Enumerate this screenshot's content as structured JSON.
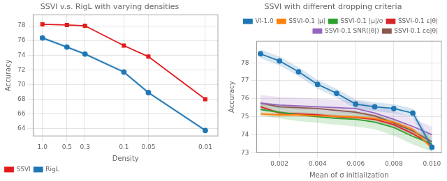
{
  "chart_data": [
    {
      "type": "line",
      "title": "SSVI v.s. RigL with varying densities",
      "xlabel": "Density",
      "ylabel": "Accuracy",
      "log": "x",
      "x": [
        1.0,
        0.5,
        0.3,
        0.1,
        0.05,
        0.01
      ],
      "xlim": [
        1.3,
        0.007
      ],
      "xticks": [
        {
          "value": 1.0,
          "label": "1.0"
        },
        0.5,
        0.3,
        0.1,
        0.05,
        0.01
      ],
      "ylim": [
        63.0,
        79.5
      ],
      "yticks": [
        64,
        66,
        68,
        70,
        72,
        74,
        76,
        78
      ],
      "grid": true,
      "legend": "lower left",
      "series": [
        {
          "name": "SSVI",
          "color": "#e31a1c",
          "marker": "square",
          "values": [
            78.2,
            78.1,
            78.0,
            75.3,
            73.8,
            68.0
          ],
          "err": [
            0.08,
            0.08,
            0.08,
            0.08,
            0.08,
            0.08
          ]
        },
        {
          "name": "RigL",
          "color": "#1f77b4",
          "marker": "circle",
          "values": [
            76.35,
            75.1,
            74.15,
            71.7,
            68.9,
            63.75
          ],
          "err": [
            0.2,
            0.2,
            0.2,
            0.2,
            0.2,
            0.2
          ]
        }
      ]
    },
    {
      "type": "line",
      "title": "SSVI with different dropping criteria",
      "xlabel": "Mean of σ initialization",
      "ylabel": "Accuracy",
      "x": [
        0.001,
        0.002,
        0.003,
        0.004,
        0.005,
        0.006,
        0.007,
        0.008,
        0.009,
        0.01
      ],
      "xlim": [
        0.0008,
        0.0105
      ],
      "xticks": [
        0.002,
        0.004,
        0.006,
        0.008,
        {
          "value": 0.01,
          "label": "0.010"
        }
      ],
      "ylim": [
        73.0,
        79.2
      ],
      "yticks": [
        73,
        74,
        75,
        76,
        77,
        78
      ],
      "grid": true,
      "legend": "upper right",
      "series": [
        {
          "name": "VI-1.0",
          "color": "#1f77b4",
          "marker": "circle",
          "values": [
            78.5,
            78.1,
            77.5,
            76.8,
            76.3,
            75.7,
            75.55,
            75.45,
            75.2,
            73.3
          ],
          "err": [
            0.25,
            0.25,
            0.25,
            0.25,
            0.25,
            0.25,
            0.25,
            0.25,
            0.25,
            0.25
          ]
        },
        {
          "name": "SSVI-0.1 |μ|",
          "color": "#ff7f0e",
          "marker": "none",
          "values": [
            75.15,
            75.1,
            75.1,
            75.05,
            75.02,
            74.98,
            74.9,
            74.7,
            74.3,
            73.25
          ],
          "err": [
            0.1,
            0.1,
            0.1,
            0.1,
            0.1,
            0.1,
            0.1,
            0.1,
            0.1,
            0.1
          ]
        },
        {
          "name": "SSVI-0.1 |μ|/σ",
          "color": "#2ca02c",
          "marker": "none",
          "values": [
            75.4,
            75.25,
            75.1,
            75.0,
            74.9,
            74.85,
            74.7,
            74.4,
            73.9,
            73.5
          ],
          "err": [
            0.35,
            0.35,
            0.35,
            0.35,
            0.35,
            0.4,
            0.4,
            0.45,
            0.45,
            0.45
          ]
        },
        {
          "name": "SSVI-0.1 ε|θ|",
          "color": "#d62728",
          "marker": "none",
          "values": [
            75.55,
            75.2,
            75.15,
            75.1,
            75.0,
            74.95,
            74.85,
            74.55,
            74.05,
            73.4
          ],
          "err": [
            0.1,
            0.1,
            0.1,
            0.1,
            0.1,
            0.1,
            0.1,
            0.1,
            0.1,
            0.1
          ]
        },
        {
          "name": "SSVI-0.1 SNR(|θ|)",
          "color": "#9467bd",
          "marker": "none",
          "values": [
            75.75,
            75.65,
            75.6,
            75.55,
            75.5,
            75.45,
            75.2,
            74.85,
            74.45,
            74.0
          ],
          "err": [
            0.45,
            0.45,
            0.45,
            0.45,
            0.45,
            0.45,
            0.45,
            0.45,
            0.45,
            0.45
          ]
        },
        {
          "name": "SSVI-0.1 εe|θ|",
          "color": "#8c564b",
          "marker": "none",
          "values": [
            75.75,
            75.55,
            75.5,
            75.45,
            75.35,
            75.25,
            75.05,
            74.65,
            74.2,
            73.6
          ],
          "err": [
            0.1,
            0.1,
            0.1,
            0.1,
            0.1,
            0.1,
            0.1,
            0.1,
            0.1,
            0.1
          ]
        }
      ]
    }
  ]
}
